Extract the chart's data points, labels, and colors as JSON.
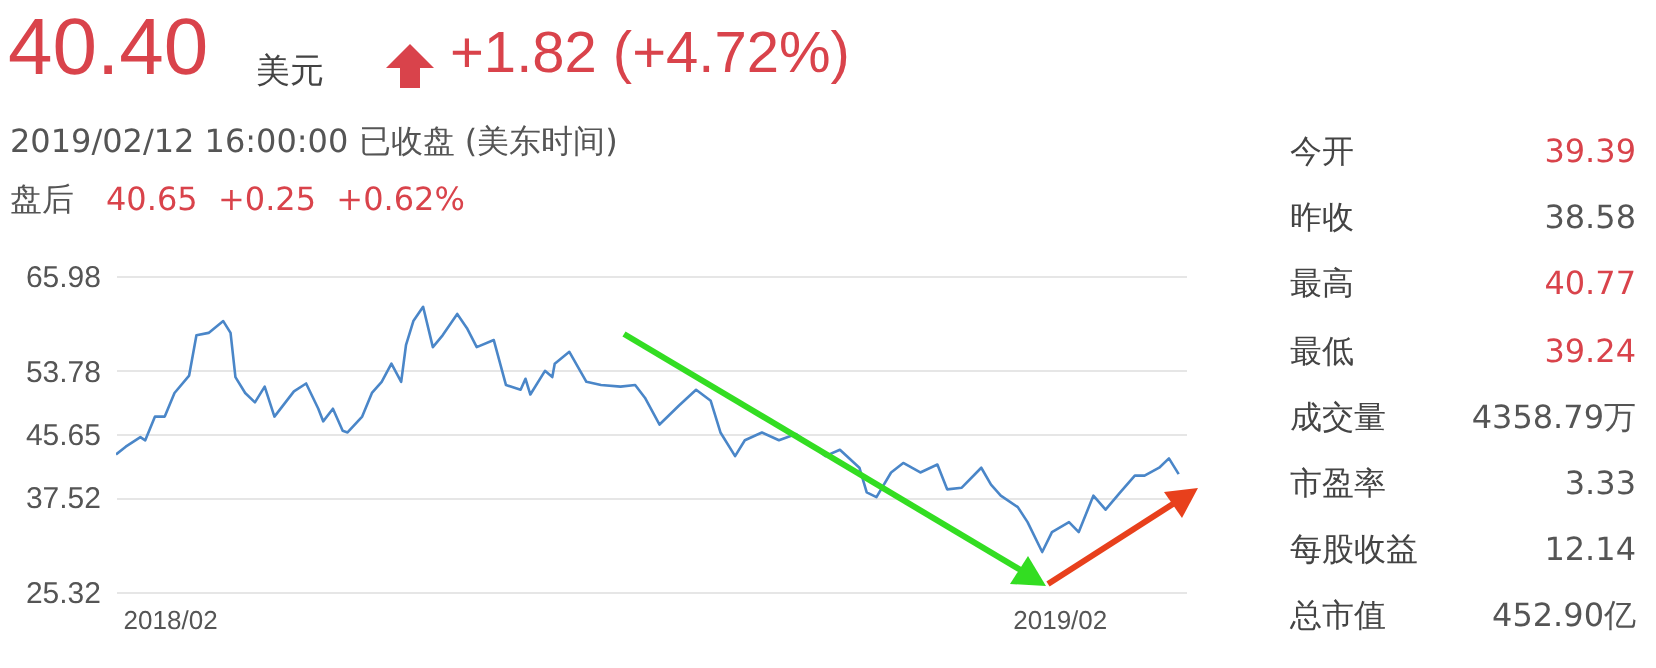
{
  "chart_data": [
    {
      "type": "other",
      "title": "40.40",
      "subtitle": "2019/02/12 16:00:00  已收盘 (美东时间)",
      "annotations": [
        "美元",
        "+1.82 (+4.72%)",
        "盘后",
        "40.65  +0.25  +0.62%"
      ]
    },
    {
      "type": "line",
      "xlim": [
        "2018-01-10",
        "2019-03-25"
      ],
      "xticks": [
        {
          "value": "2018-02-01",
          "label": "2018/02"
        },
        {
          "value": "2019-02-01",
          "label": "2019/02"
        }
      ],
      "ylim": [
        25.32,
        65.98
      ],
      "yticks": [
        25.32,
        37.52,
        45.65,
        53.78,
        65.98
      ],
      "grid": "y",
      "marker": "none",
      "line_style": "solid",
      "x": [
        "2018-01-10",
        "2018-01-14",
        "2018-01-20",
        "2018-01-22",
        "2018-01-26",
        "2018-01-30",
        "2018-02-03",
        "2018-02-09",
        "2018-02-12",
        "2018-02-17",
        "2018-02-23",
        "2018-02-26",
        "2018-02-28",
        "2018-03-04",
        "2018-03-08",
        "2018-03-12",
        "2018-03-16",
        "2018-03-24",
        "2018-03-29",
        "2018-04-03",
        "2018-04-05",
        "2018-04-09",
        "2018-04-13",
        "2018-04-15",
        "2018-04-21",
        "2018-04-25",
        "2018-04-29",
        "2018-05-03",
        "2018-05-07",
        "2018-05-09",
        "2018-05-12",
        "2018-05-16",
        "2018-05-20",
        "2018-05-24",
        "2018-05-30",
        "2018-06-03",
        "2018-06-07",
        "2018-06-14",
        "2018-06-19",
        "2018-06-25",
        "2018-06-27",
        "2018-06-29",
        "2018-07-05",
        "2018-07-08",
        "2018-07-09",
        "2018-07-15",
        "2018-07-22",
        "2018-07-28",
        "2018-08-05",
        "2018-08-11",
        "2018-08-15",
        "2018-08-21",
        "2018-08-29",
        "2018-09-05",
        "2018-09-11",
        "2018-09-15",
        "2018-09-21",
        "2018-09-25",
        "2018-10-02",
        "2018-10-09",
        "2018-10-16",
        "2018-10-24",
        "2018-10-28",
        "2018-11-03",
        "2018-11-11",
        "2018-11-14",
        "2018-11-18",
        "2018-11-24",
        "2018-11-29",
        "2018-12-06",
        "2018-12-13",
        "2018-12-17",
        "2018-12-23",
        "2018-12-31",
        "2019-01-04",
        "2019-01-08",
        "2019-01-15",
        "2019-01-19",
        "2019-01-25",
        "2019-01-29",
        "2019-02-05",
        "2019-02-09",
        "2019-02-15",
        "2019-02-20",
        "2019-02-26",
        "2019-03-04",
        "2019-03-08",
        "2019-03-14",
        "2019-03-18",
        "2019-03-22"
      ],
      "series": [
        {
          "color": "#4a86c8",
          "values": [
            43.01,
            44.02,
            45.24,
            44.84,
            47.89,
            47.89,
            50.93,
            53.17,
            58.35,
            58.66,
            60.18,
            58.66,
            52.97,
            50.93,
            49.72,
            51.75,
            47.89,
            51.14,
            52.15,
            48.9,
            47.28,
            48.9,
            46.06,
            45.85,
            47.89,
            50.93,
            52.36,
            54.7,
            52.36,
            57.13,
            60.18,
            62.02,
            56.83,
            58.35,
            61.1,
            59.27,
            56.83,
            57.74,
            51.95,
            51.34,
            52.76,
            50.73,
            53.78,
            52.97,
            54.7,
            56.22,
            52.36,
            51.95,
            51.75,
            51.95,
            50.32,
            46.87,
            49.31,
            51.34,
            49.92,
            45.85,
            42.81,
            44.84,
            45.85,
            44.84,
            45.65,
            43.82,
            42.81,
            43.62,
            41.31,
            38.13,
            37.52,
            40.7,
            41.92,
            40.7,
            41.72,
            38.53,
            38.74,
            41.31,
            39.14,
            37.72,
            36.24,
            34.31,
            30.46,
            33.03,
            34.31,
            33.03,
            37.72,
            35.91,
            38.13,
            40.29,
            40.29,
            41.31,
            42.52,
            40.49
          ]
        }
      ]
    },
    {
      "type": "other",
      "categories": [
        "今开",
        "昨收",
        "最高",
        "最低",
        "成交量",
        "市盈率",
        "每股收益",
        "总市值"
      ],
      "value_labels": [
        "39.39",
        "38.58",
        "40.77",
        "39.24",
        "4358.79万",
        "3.33",
        "12.14",
        "452.90亿"
      ],
      "colors": [
        "#d9434b",
        "#555555",
        "#d9434b",
        "#d9434b",
        "#555555",
        "#555555",
        "#555555",
        "#555555"
      ]
    }
  ]
}
